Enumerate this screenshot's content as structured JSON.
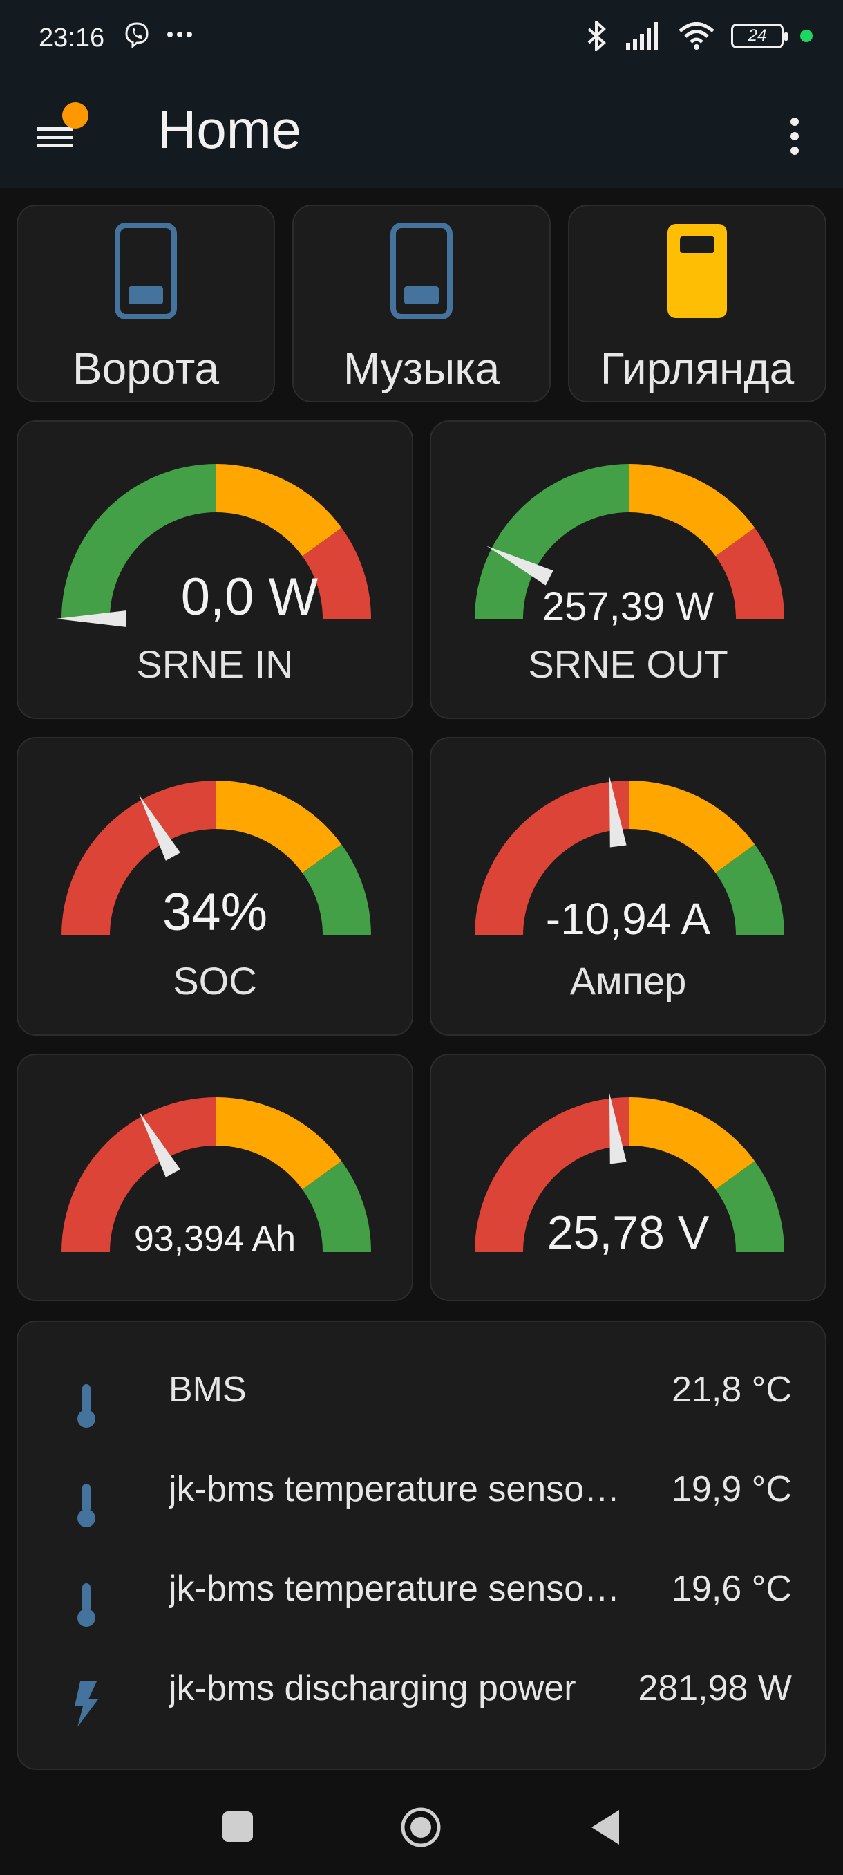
{
  "status_bar": {
    "time": "23:16",
    "battery": "24"
  },
  "app_bar": {
    "title": "Home"
  },
  "buttons": [
    {
      "label": "Ворота",
      "state": "off"
    },
    {
      "label": "Музыка",
      "state": "off"
    },
    {
      "label": "Гирлянда",
      "state": "on"
    }
  ],
  "gauges": [
    {
      "name": "SRNE IN",
      "value_text": "0,0 W",
      "level": 0.0,
      "segments": [
        "#43a047",
        "#ffa600",
        "#db4437"
      ]
    },
    {
      "name": "SRNE OUT",
      "value_text": "257,39 W",
      "level": 0.15,
      "segments": [
        "#43a047",
        "#ffa600",
        "#db4437"
      ]
    },
    {
      "name": "SOC",
      "value_text": "34%",
      "level": 0.34,
      "segments": [
        "#db4437",
        "#ffa600",
        "#43a047"
      ]
    },
    {
      "name": "Ампер",
      "value_text": "-10,94 A",
      "level": 0.46,
      "segments": [
        "#db4437",
        "#ffa600",
        "#43a047"
      ]
    },
    {
      "name": "",
      "value_text": "93,394 Ah",
      "level": 0.34,
      "segments": [
        "#db4437",
        "#ffa600",
        "#43a047"
      ]
    },
    {
      "name": "",
      "value_text": "25,78 V",
      "level": 0.46,
      "segments": [
        "#db4437",
        "#ffa600",
        "#43a047"
      ]
    }
  ],
  "entities": [
    {
      "name": "BMS",
      "value": "21,8 °C",
      "icon": "thermometer-icon"
    },
    {
      "name": "jk-bms temperature senso…",
      "value": "19,9 °C",
      "icon": "thermometer-icon"
    },
    {
      "name": "jk-bms temperature senso…",
      "value": "19,6 °C",
      "icon": "thermometer-icon"
    },
    {
      "name": "jk-bms discharging power",
      "value": "281,98 W",
      "icon": "lightning-icon"
    }
  ],
  "colors": {
    "icon_off": "#44739e",
    "icon_on": "#fdbe03",
    "green": "#43a047",
    "orange": "#ffa600",
    "red": "#db4437"
  }
}
